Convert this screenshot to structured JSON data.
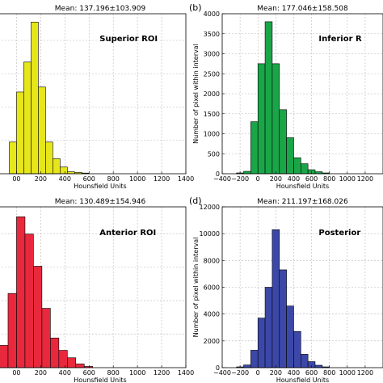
{
  "chart_data": [
    {
      "type": "bar",
      "panel_label": "",
      "title": "Mean: 137.196±103.909",
      "annotation": "Superior ROI",
      "xlabel": "Hounsfield Units",
      "ylabel": "",
      "color": "#e6e61a",
      "xlim": [
        -150,
        1400
      ],
      "ylim": [
        0,
        4800
      ],
      "xticks": [
        0,
        200,
        400,
        600,
        800,
        1000,
        1200,
        1400
      ],
      "xtick_labels": [
        "00",
        "200",
        "400",
        "600",
        "800",
        "1000",
        "1200",
        "1400"
      ],
      "yticks": [],
      "bin_width": 60,
      "bins_start": [
        -60,
        0,
        60,
        120,
        180,
        240,
        300,
        360,
        420,
        480,
        540
      ],
      "values": [
        950,
        2450,
        3350,
        4550,
        2600,
        950,
        450,
        200,
        60,
        40,
        20
      ]
    },
    {
      "type": "bar",
      "panel_label": "(b)",
      "title": "Mean: 177.046±158.508",
      "annotation": "Inferior R",
      "xlabel": "Hounsfield Units",
      "ylabel": "Number of pixel within interval",
      "color": "#1aa648",
      "xlim": [
        -400,
        1400
      ],
      "ylim": [
        0,
        4000
      ],
      "xticks": [
        -400,
        -200,
        0,
        200,
        400,
        600,
        800,
        1000,
        1200
      ],
      "xtick_labels": [
        "−400",
        "−200",
        "0",
        "200",
        "400",
        "600",
        "800",
        "1000",
        "1200"
      ],
      "yticks": [
        0,
        500,
        1000,
        1500,
        2000,
        2500,
        3000,
        3500,
        4000
      ],
      "bin_width": 80,
      "bins_start": [
        -240,
        -160,
        -80,
        0,
        80,
        160,
        240,
        320,
        400,
        480,
        560,
        640,
        720
      ],
      "values": [
        20,
        60,
        1300,
        2750,
        3800,
        2750,
        1600,
        900,
        400,
        250,
        100,
        50,
        20
      ]
    },
    {
      "type": "bar",
      "panel_label": "",
      "title": "Mean: 130.489±154.946",
      "annotation": "Anterior ROI",
      "xlabel": "Hounsfield Units",
      "ylabel": "",
      "color": "#e8283c",
      "xlim": [
        -150,
        1400
      ],
      "ylim": [
        0,
        6500
      ],
      "xticks": [
        0,
        200,
        400,
        600,
        800,
        1000,
        1200,
        1400
      ],
      "xtick_labels": [
        "00",
        "200",
        "400",
        "600",
        "800",
        "1000",
        "1200",
        "1400"
      ],
      "yticks": [],
      "bin_width": 70,
      "bins_start": [
        -140,
        -70,
        0,
        70,
        140,
        210,
        280,
        350,
        420,
        490,
        560
      ],
      "values": [
        900,
        3000,
        6100,
        5400,
        4100,
        2400,
        1200,
        700,
        400,
        150,
        50
      ]
    },
    {
      "type": "bar",
      "panel_label": "(d)",
      "title": "Mean: 211.197±168.026",
      "annotation": "Posterior",
      "xlabel": "Hounsfield Units",
      "ylabel": "Number of pixel within interval",
      "color": "#3c48a8",
      "xlim": [
        -400,
        1400
      ],
      "ylim": [
        0,
        12000
      ],
      "xticks": [
        -400,
        -200,
        0,
        200,
        400,
        600,
        800,
        1000,
        1200
      ],
      "xtick_labels": [
        "−400",
        "−200",
        "0",
        "200",
        "400",
        "600",
        "800",
        "1000",
        "1200"
      ],
      "yticks": [
        0,
        2000,
        4000,
        6000,
        8000,
        10000,
        12000
      ],
      "bin_width": 80,
      "bins_start": [
        -240,
        -160,
        -80,
        0,
        80,
        160,
        240,
        320,
        400,
        480,
        560,
        640,
        720
      ],
      "values": [
        60,
        200,
        1300,
        3700,
        6000,
        10300,
        7300,
        4600,
        2700,
        1000,
        450,
        180,
        60
      ]
    }
  ]
}
